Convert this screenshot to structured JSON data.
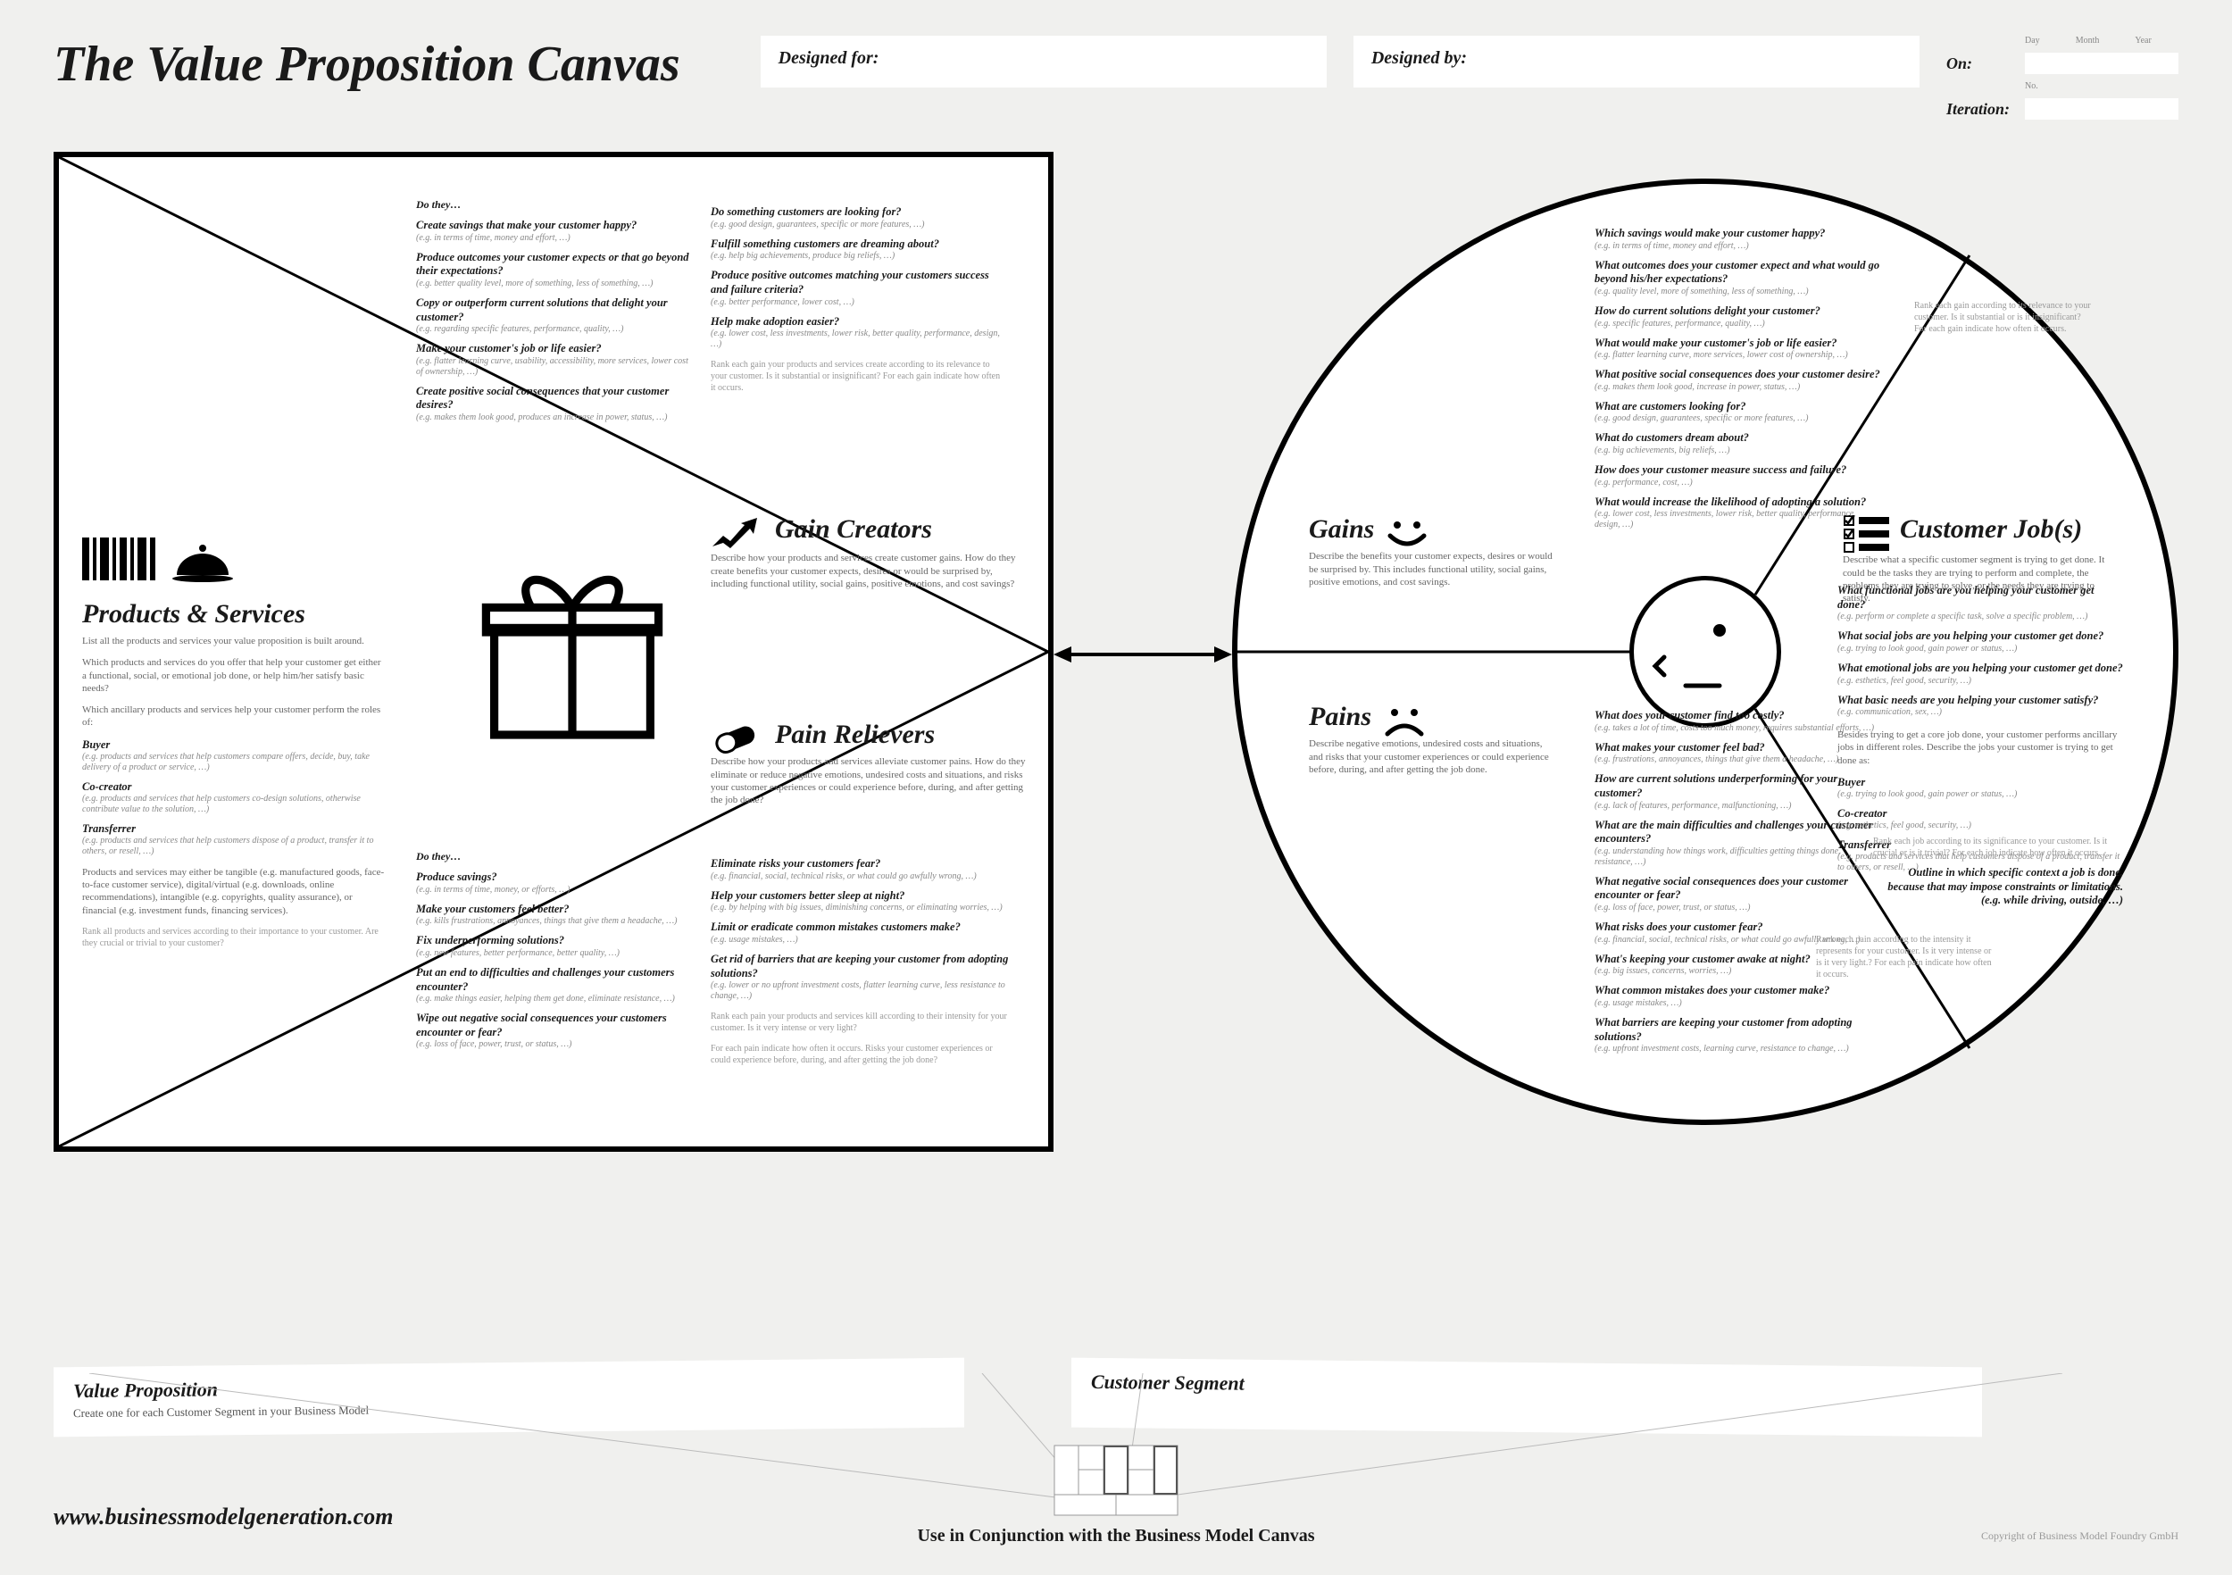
{
  "title": "The Value Proposition Canvas",
  "header": {
    "designed_for": "Designed for:",
    "designed_by": "Designed by:",
    "on": "On:",
    "iteration": "Iteration:",
    "day": "Day",
    "month": "Month",
    "year": "Year",
    "no": "No."
  },
  "square": {
    "ps": {
      "title": "Products & Services",
      "desc": "List all the products and services your value proposition is built around.",
      "q1": "Which products and services do you offer that help your customer get either a functional, social, or emotional job done, or help him/her satisfy basic needs?",
      "q2": "Which ancillary products and services help your customer perform the roles of:",
      "roles": [
        {
          "name": "Buyer",
          "eg": "(e.g. products and services that help customers compare offers, decide, buy, take delivery of a product or service, …)"
        },
        {
          "name": "Co-creator",
          "eg": "(e.g. products and services that help customers co-design solutions, otherwise contribute value to the solution, …)"
        },
        {
          "name": "Transferrer",
          "eg": "(e.g. products and services that help customers dispose of a product, transfer it to others, or resell, …)"
        }
      ],
      "note": "Products and services may either be tangible (e.g. manufactured goods, face-to-face customer service), digital/virtual (e.g. downloads, online recommendations), intangible (e.g. copyrights, quality assurance), or financial (e.g. investment funds, financing services).",
      "rank": "Rank all products and services according to their importance to your customer. Are they crucial or trivial to your customer?"
    },
    "gc": {
      "title": "Gain Creators",
      "desc": "Describe how your products and services create customer gains. How do they create benefits your customer expects, desires or would be surprised by, including functional utility, social gains, positive emotions, and cost savings?",
      "lead": "Do they…",
      "col1": [
        {
          "q": "Create savings that make your customer happy?",
          "eg": "(e.g. in terms of time, money and effort, …)"
        },
        {
          "q": "Produce outcomes your customer expects or that go beyond their expectations?",
          "eg": "(e.g. better quality level, more of something, less of something, …)"
        },
        {
          "q": "Copy or outperform current solutions that delight your customer?",
          "eg": "(e.g. regarding specific features, performance, quality, …)"
        },
        {
          "q": "Make your customer's job or life easier?",
          "eg": "(e.g. flatter learning curve, usability, accessibility, more services, lower cost of ownership, …)"
        },
        {
          "q": "Create positive social consequences that your customer desires?",
          "eg": "(e.g. makes them look good, produces an increase in power, status, …)"
        }
      ],
      "col2": [
        {
          "q": "Do something customers are looking for?",
          "eg": "(e.g. good design, guarantees, specific or more features, …)"
        },
        {
          "q": "Fulfill something customers are dreaming about?",
          "eg": "(e.g. help big achievements, produce big reliefs, …)"
        },
        {
          "q": "Produce positive outcomes matching your customers success and failure criteria?",
          "eg": "(e.g. better performance, lower cost, …)"
        },
        {
          "q": "Help make adoption easier?",
          "eg": "(e.g. lower cost, less investments, lower risk, better quality, performance, design, …)"
        }
      ],
      "rank": "Rank each gain your products and services create according to its relevance to your customer. Is it substantial or insignificant? For each gain indicate how often it occurs."
    },
    "pr": {
      "title": "Pain Relievers",
      "desc": "Describe how your products and services alleviate customer pains. How do they eliminate or reduce negative emotions, undesired costs and situations, and risks your customer experiences or could experience before, during, and after getting the job done?",
      "lead": "Do they…",
      "col1": [
        {
          "q": "Produce savings?",
          "eg": "(e.g. in terms of time, money, or efforts, …)"
        },
        {
          "q": "Make your customers feel better?",
          "eg": "(e.g. kills frustrations, annoyances, things that give them a headache, …)"
        },
        {
          "q": "Fix underperforming solutions?",
          "eg": "(e.g. new features, better performance, better quality, …)"
        },
        {
          "q": "Put an end to difficulties and challenges your customers encounter?",
          "eg": "(e.g. make things easier, helping them get done, eliminate resistance, …)"
        },
        {
          "q": "Wipe out negative social consequences your customers encounter or fear?",
          "eg": "(e.g. loss of face, power, trust, or status, …)"
        }
      ],
      "col2": [
        {
          "q": "Eliminate risks your customers fear?",
          "eg": "(e.g. financial, social, technical risks, or what could go awfully wrong, …)"
        },
        {
          "q": "Help your customers better sleep at night?",
          "eg": "(e.g. by helping with big issues, diminishing concerns, or eliminating worries, …)"
        },
        {
          "q": "Limit or eradicate common mistakes customers make?",
          "eg": "(e.g. usage mistakes, …)"
        },
        {
          "q": "Get rid of barriers that are keeping your customer from adopting solutions?",
          "eg": "(e.g. lower or no upfront investment costs, flatter learning curve, less resistance to change, …)"
        }
      ],
      "rank": "Rank each pain your products and services kill according to their intensity for your customer. Is it very intense or very light?",
      "rank2": "For each pain indicate how often it occurs. Risks your customer experiences or could experience before, during, and after getting the job done?"
    }
  },
  "circle": {
    "gains": {
      "title": "Gains",
      "desc": "Describe the benefits your customer expects, desires or would be surprised by. This includes functional utility, social gains, positive emotions, and cost savings.",
      "qs": [
        {
          "q": "Which savings would make your customer happy?",
          "eg": "(e.g. in terms of time, money and effort, …)"
        },
        {
          "q": "What outcomes does your customer expect and what would go beyond his/her expectations?",
          "eg": "(e.g. quality level, more of something, less of something, …)"
        },
        {
          "q": "How do current solutions delight your customer?",
          "eg": "(e.g. specific features, performance, quality, …)"
        },
        {
          "q": "What would make your customer's job or life easier?",
          "eg": "(e.g. flatter learning curve, more services, lower cost of ownership, …)"
        },
        {
          "q": "What positive social consequences does your customer desire?",
          "eg": "(e.g. makes them look good, increase in power, status, …)"
        },
        {
          "q": "What are customers looking for?",
          "eg": "(e.g. good design, guarantees, specific or more features, …)"
        },
        {
          "q": "What do customers dream about?",
          "eg": "(e.g. big achievements, big reliefs, …)"
        },
        {
          "q": "How does your customer measure success and failure?",
          "eg": "(e.g. performance, cost, …)"
        },
        {
          "q": "What would increase the likelihood of adopting a solution?",
          "eg": "(e.g. lower cost, less investments, lower risk, better quality, performance, design, …)"
        }
      ],
      "rank": "Rank each gain according to its relevance to your customer. Is it substantial or is it insignificant? For each gain indicate how often it occurs."
    },
    "pains": {
      "title": "Pains",
      "desc": "Describe negative emotions, undesired costs and situations, and risks that your customer experiences or could experience before, during, and after getting the job done.",
      "qs": [
        {
          "q": "What does your customer find too costly?",
          "eg": "(e.g. takes a lot of time, costs too much money, requires substantial efforts, …)"
        },
        {
          "q": "What makes your customer feel bad?",
          "eg": "(e.g. frustrations, annoyances, things that give them a headache, …)"
        },
        {
          "q": "How are current solutions underperforming for your customer?",
          "eg": "(e.g. lack of features, performance, malfunctioning, …)"
        },
        {
          "q": "What are the main difficulties and challenges your customer encounters?",
          "eg": "(e.g. understanding how things work, difficulties getting things done, resistance, …)"
        },
        {
          "q": "What negative social consequences does your customer encounter or fear?",
          "eg": "(e.g. loss of face, power, trust, or status, …)"
        },
        {
          "q": "What risks does your customer fear?",
          "eg": "(e.g. financial, social, technical risks, or what could go awfully wrong, …)"
        },
        {
          "q": "What's keeping your customer awake at night?",
          "eg": "(e.g. big issues, concerns, worries, …)"
        },
        {
          "q": "What common mistakes does your customer make?",
          "eg": "(e.g. usage mistakes, …)"
        },
        {
          "q": "What barriers are keeping your customer from adopting solutions?",
          "eg": "(e.g. upfront investment costs, learning curve, resistance to change, …)"
        }
      ],
      "rank": "Rank each pain according to the intensity it represents for your customer. Is it very intense or is it very light.? For each pain indicate how often it occurs."
    },
    "jobs": {
      "title": "Customer Job(s)",
      "desc": "Describe what a specific customer segment is trying to get done. It could be the tasks they are trying to perform and complete, the problems they are trying to solve, or the needs they are trying to satisfy.",
      "qs": [
        {
          "q": "What functional jobs are you helping your customer get done?",
          "eg": "(e.g. perform or complete a specific task, solve a specific problem, …)"
        },
        {
          "q": "What social jobs are you helping your customer get done?",
          "eg": "(e.g. trying to look good, gain power or status, …)"
        },
        {
          "q": "What emotional jobs are you helping your customer get done?",
          "eg": "(e.g. esthetics, feel good, security, …)"
        },
        {
          "q": "What basic needs are you helping your customer satisfy?",
          "eg": "(e.g. communication, sex, …)"
        }
      ],
      "roles_lead": "Besides trying to get a core job done, your customer performs ancillary jobs in different roles. Describe the jobs your customer is trying to get done as:",
      "roles": [
        {
          "name": "Buyer",
          "eg": "(e.g. trying to look good, gain power or status, …)"
        },
        {
          "name": "Co-creator",
          "eg": "(e.g. esthetics, feel good, security, …)"
        },
        {
          "name": "Transferrer",
          "eg": "(e.g. products and services that help customers dispose of a product, transfer it to others, or resell, …)"
        }
      ],
      "rank": "Rank each job according to its significance to your customer. Is it crucial or is it trivial? For each job indicate how often it occurs.",
      "context": "Outline in which specific context a job is done, because that may impose constraints or limitations. (e.g. while driving, outside, …)"
    }
  },
  "footer": {
    "vp_title": "Value Proposition",
    "vp_sub": "Create one for each Customer Segment in your Business Model",
    "cs_title": "Customer Segment",
    "url": "www.businessmodelgeneration.com",
    "conjunction": "Use in Conjunction with the Business Model Canvas",
    "copyright": "Copyright of Business Model Foundry GmbH"
  },
  "colors": {
    "bg": "#f0f0ee",
    "stroke": "#000000",
    "text": "#1a1a1a",
    "muted": "#888888"
  }
}
